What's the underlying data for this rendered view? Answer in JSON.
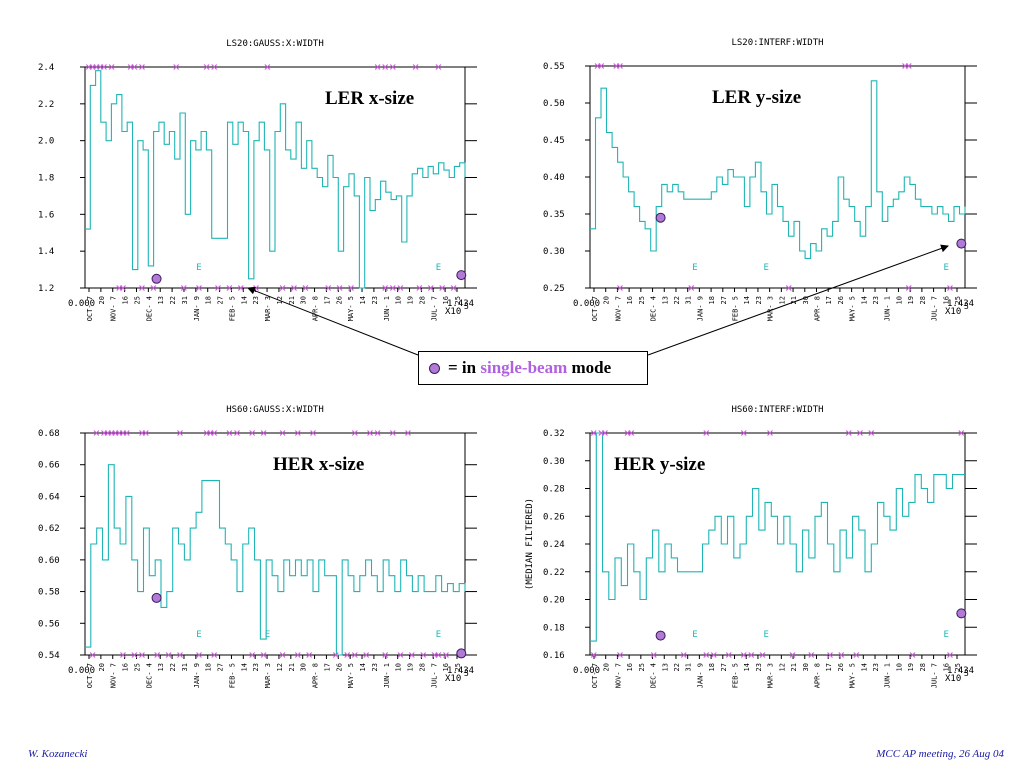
{
  "footer": {
    "left": "W. Kozanecki",
    "right": "MCC AP meeting, 26 Aug 04"
  },
  "legend": {
    "prefix": "= in",
    "highlight": "single-beam",
    "suffix": "mode"
  },
  "colors": {
    "trace": "#1fb5b5",
    "marker": "#d060e0",
    "dot": "#b07ad6",
    "e_label": "#1fb5b5",
    "highlight": "#b060e0"
  },
  "x_tick_labels": [
    "OCT- 7",
    "20",
    "NOV- 7",
    "16",
    "25",
    "DEC- 4",
    "13",
    "22",
    "31",
    "JAN- 9",
    "18",
    "27",
    "FEB- 5",
    "14",
    "23",
    "MAR- 3",
    "12",
    "21",
    "30",
    "APR- 8",
    "17",
    "26",
    "MAY- 5",
    "14",
    "23",
    "JUN- 1",
    "10",
    "19",
    "28",
    "JUL- 7",
    "16",
    "25"
  ],
  "x_axis_start": "0.000",
  "x_axis_end": "1.434",
  "x_axis_multiplier": "X10",
  "x_axis_exponent": "5",
  "chart_data": [
    {
      "type": "line",
      "id": "ler-x",
      "title": "LS20:GAUSS:X:WIDTH",
      "annotation": "LER x-size",
      "ylabel": "",
      "ylim": [
        1.2,
        2.4
      ],
      "yticks": [
        "2.4",
        "2.2",
        "2.0",
        "1.8",
        "1.6",
        "1.4",
        "1.2"
      ],
      "series": [
        {
          "values": [
            1.52,
            2.3,
            2.38,
            2.1,
            2.0,
            2.2,
            2.25,
            2.05,
            2.1,
            1.3,
            2.0,
            1.95,
            1.32,
            2.05,
            2.1,
            1.98,
            2.05,
            1.9,
            2.15,
            1.6,
            2.0,
            1.95,
            2.05,
            1.95,
            1.47,
            1.47,
            1.47,
            2.1,
            1.98,
            2.1,
            2.05,
            1.25,
            2.0,
            2.1,
            1.95,
            1.4,
            2.05,
            2.2,
            1.95,
            1.9,
            2.1,
            1.85,
            2.0,
            1.85,
            1.8,
            1.75,
            1.92,
            1.8,
            1.4,
            1.75,
            1.82,
            1.7,
            1.2,
            1.8,
            1.62,
            1.68,
            1.78,
            1.72,
            1.68,
            1.7,
            1.45,
            1.7,
            1.82,
            1.85,
            1.8,
            1.86,
            1.82,
            1.88,
            1.84,
            1.8,
            1.86,
            1.88,
            1.8
          ]
        }
      ],
      "single_beam_points": [
        {
          "x": 0.27,
          "y": 1.25
        },
        {
          "x": 1.42,
          "y": 1.27
        }
      ],
      "e_labels": [
        "E",
        "E"
      ]
    },
    {
      "type": "line",
      "id": "ler-y",
      "title": "LS20:INTERF:WIDTH",
      "annotation": "LER y-size",
      "ylabel": "",
      "ylim": [
        0.25,
        0.55
      ],
      "yticks": [
        "0.55",
        "0.50",
        "0.45",
        "0.40",
        "0.35",
        "0.30",
        "0.25"
      ],
      "series": [
        {
          "values": [
            0.33,
            0.48,
            0.52,
            0.46,
            0.44,
            0.42,
            0.4,
            0.38,
            0.36,
            0.34,
            0.33,
            0.3,
            0.36,
            0.39,
            0.38,
            0.39,
            0.38,
            0.37,
            0.37,
            0.37,
            0.37,
            0.37,
            0.38,
            0.4,
            0.39,
            0.41,
            0.4,
            0.4,
            0.36,
            0.4,
            0.42,
            0.38,
            0.35,
            0.39,
            0.36,
            0.34,
            0.32,
            0.34,
            0.3,
            0.29,
            0.31,
            0.3,
            0.33,
            0.32,
            0.34,
            0.4,
            0.37,
            0.36,
            0.34,
            0.32,
            0.36,
            0.53,
            0.38,
            0.34,
            0.36,
            0.37,
            0.38,
            0.4,
            0.39,
            0.37,
            0.36,
            0.36,
            0.35,
            0.36,
            0.35,
            0.34,
            0.36,
            0.35,
            0.36
          ]
        }
      ],
      "single_beam_points": [
        {
          "x": 0.27,
          "y": 0.345
        },
        {
          "x": 1.42,
          "y": 0.31
        }
      ],
      "e_labels": [
        "E",
        "E",
        "E"
      ]
    },
    {
      "type": "line",
      "id": "her-x",
      "title": "HS60:GAUSS:X:WIDTH",
      "annotation": "HER x-size",
      "ylabel": "",
      "ylim": [
        0.54,
        0.68
      ],
      "yticks": [
        "0.68",
        "0.66",
        "0.64",
        "0.62",
        "0.60",
        "0.58",
        "0.56",
        "0.54"
      ],
      "series": [
        {
          "values": [
            0.545,
            0.61,
            0.62,
            0.6,
            0.66,
            0.62,
            0.61,
            0.64,
            0.6,
            0.58,
            0.62,
            0.59,
            0.6,
            0.57,
            0.58,
            0.62,
            0.61,
            0.6,
            0.62,
            0.63,
            0.65,
            0.65,
            0.65,
            0.62,
            0.61,
            0.6,
            0.58,
            0.61,
            0.62,
            0.6,
            0.55,
            0.6,
            0.59,
            0.58,
            0.6,
            0.59,
            0.6,
            0.59,
            0.6,
            0.58,
            0.6,
            0.59,
            0.59,
            0.54,
            0.6,
            0.59,
            0.58,
            0.59,
            0.6,
            0.59,
            0.58,
            0.6,
            0.59,
            0.58,
            0.6,
            0.59,
            0.58,
            0.59,
            0.58,
            0.58,
            0.59,
            0.58,
            0.585,
            0.58,
            0.585,
            0.58
          ]
        }
      ],
      "single_beam_points": [
        {
          "x": 0.27,
          "y": 0.576
        },
        {
          "x": 1.42,
          "y": 0.541
        }
      ],
      "e_labels": [
        "E",
        "E",
        "E"
      ]
    },
    {
      "type": "line",
      "id": "her-y",
      "title": "HS60:INTERF:WIDTH",
      "annotation": "HER y-size",
      "ylabel": "(MEDIAN FILTERED)",
      "ylim": [
        0.16,
        0.32
      ],
      "yticks": [
        "0.32",
        "0.30",
        "0.28",
        "0.26",
        "0.24",
        "0.22",
        "0.20",
        "0.18",
        "0.16"
      ],
      "series": [
        {
          "values": [
            0.17,
            0.32,
            0.22,
            0.2,
            0.23,
            0.21,
            0.24,
            0.22,
            0.2,
            0.23,
            0.25,
            0.22,
            0.24,
            0.23,
            0.22,
            0.22,
            0.22,
            0.22,
            0.24,
            0.25,
            0.26,
            0.24,
            0.26,
            0.23,
            0.24,
            0.26,
            0.28,
            0.25,
            0.27,
            0.26,
            0.24,
            0.26,
            0.24,
            0.22,
            0.25,
            0.23,
            0.26,
            0.27,
            0.24,
            0.22,
            0.25,
            0.23,
            0.26,
            0.25,
            0.22,
            0.24,
            0.27,
            0.26,
            0.25,
            0.28,
            0.26,
            0.27,
            0.29,
            0.28,
            0.27,
            0.29,
            0.29,
            0.28,
            0.29,
            0.29,
            0.29
          ]
        }
      ],
      "single_beam_points": [
        {
          "x": 0.27,
          "y": 0.174
        },
        {
          "x": 1.42,
          "y": 0.19
        }
      ],
      "e_labels": [
        "E",
        "E",
        "E"
      ]
    }
  ]
}
